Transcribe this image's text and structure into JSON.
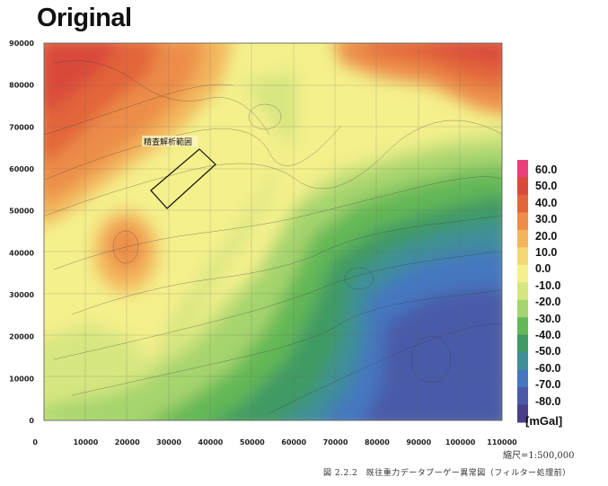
{
  "title": "Original",
  "map": {
    "x_ticks": [
      "0",
      "10000",
      "20000",
      "30000",
      "40000",
      "50000",
      "60000",
      "70000",
      "80000",
      "90000",
      "100000",
      "110000"
    ],
    "y_ticks": [
      "90000",
      "80000",
      "70000",
      "60000",
      "50000",
      "40000",
      "30000",
      "20000",
      "10000",
      "0"
    ],
    "area_label": "精査解析範囲"
  },
  "colorbar": {
    "levels": [
      "60.0",
      "50.0",
      "40.0",
      "30.0",
      "20.0",
      "10.0",
      "0.0",
      "-10.0",
      "-20.0",
      "-30.0",
      "-40.0",
      "-50.0",
      "-60.0",
      "-70.0",
      "-80.0"
    ],
    "colors": [
      "#e8407a",
      "#d94a3a",
      "#e2653a",
      "#ec8d4a",
      "#f3b45c",
      "#f6d878",
      "#f4f08c",
      "#d6e680",
      "#a6d46e",
      "#64b857",
      "#3f9a63",
      "#3f8f99",
      "#4577c0",
      "#4a5aa8",
      "#4a3f8a"
    ],
    "unit": "[mGal]"
  },
  "scale_text": "縮尺=1:500,000",
  "caption": "図 2.2.2　既往重力データブーゲー異常図（フィルター処理前）"
}
